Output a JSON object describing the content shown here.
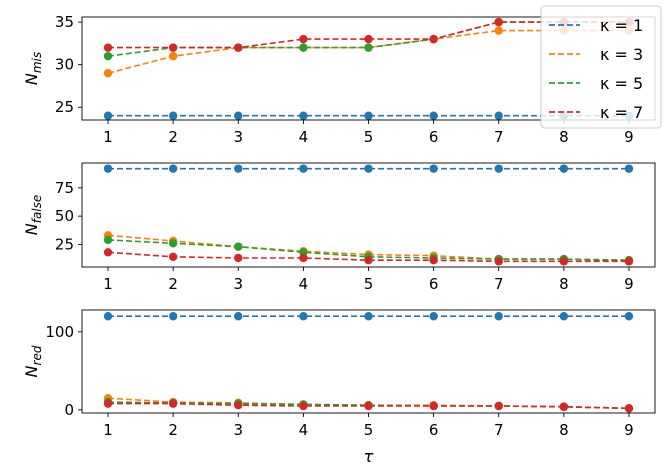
{
  "chart_data": [
    {
      "type": "line",
      "ylabel_main": "N",
      "ylabel_sub": "mis",
      "x": [
        1,
        2,
        3,
        4,
        5,
        6,
        7,
        8,
        9
      ],
      "ylim": [
        23.5,
        35.6
      ],
      "yticks": [
        25,
        30,
        35
      ],
      "series": [
        {
          "name": "κ = 1",
          "values": [
            24,
            24,
            24,
            24,
            24,
            24,
            24,
            24,
            24
          ]
        },
        {
          "name": "κ = 3",
          "values": [
            29,
            31,
            32,
            32,
            32,
            33,
            34,
            34,
            34
          ]
        },
        {
          "name": "κ = 5",
          "values": [
            31,
            32,
            32,
            32,
            32,
            33,
            35,
            35,
            35
          ]
        },
        {
          "name": "κ = 7",
          "values": [
            32,
            32,
            32,
            33,
            33,
            33,
            35,
            35,
            35
          ]
        }
      ],
      "legend": "top-right",
      "line_style": "dashed with circle markers"
    },
    {
      "type": "line",
      "ylabel_main": "N",
      "ylabel_sub": "false",
      "x": [
        1,
        2,
        3,
        4,
        5,
        6,
        7,
        8,
        9
      ],
      "ylim": [
        5,
        97
      ],
      "yticks": [
        25,
        50,
        75
      ],
      "series": [
        {
          "name": "κ = 1",
          "values": [
            92,
            92,
            92,
            92,
            92,
            92,
            92,
            92,
            92
          ]
        },
        {
          "name": "κ = 3",
          "values": [
            33,
            28,
            23,
            19,
            16,
            15,
            12,
            12,
            11
          ]
        },
        {
          "name": "κ = 5",
          "values": [
            29,
            26,
            23,
            18,
            14,
            13,
            12,
            12,
            11
          ]
        },
        {
          "name": "κ = 7",
          "values": [
            18,
            14,
            13,
            13,
            11,
            11,
            10,
            10,
            10
          ]
        }
      ]
    },
    {
      "type": "line",
      "ylabel_main": "N",
      "ylabel_sub": "red",
      "xlabel": "τ",
      "x": [
        1,
        2,
        3,
        4,
        5,
        6,
        7,
        8,
        9
      ],
      "ylim": [
        -4,
        128
      ],
      "yticks": [
        0,
        100
      ],
      "series": [
        {
          "name": "κ = 1",
          "values": [
            120,
            120,
            120,
            120,
            120,
            120,
            120,
            120,
            120
          ]
        },
        {
          "name": "κ = 3",
          "values": [
            15,
            10,
            9,
            7,
            6,
            6,
            5,
            4,
            2
          ]
        },
        {
          "name": "κ = 5",
          "values": [
            10,
            9,
            8,
            7,
            6,
            5,
            5,
            4,
            2
          ]
        },
        {
          "name": "κ = 7",
          "values": [
            8,
            8,
            6,
            5,
            5,
            5,
            5,
            4,
            2
          ]
        }
      ]
    }
  ],
  "colors": [
    "#1f77b4",
    "#ff7f0e",
    "#2ca02c",
    "#d62728"
  ]
}
